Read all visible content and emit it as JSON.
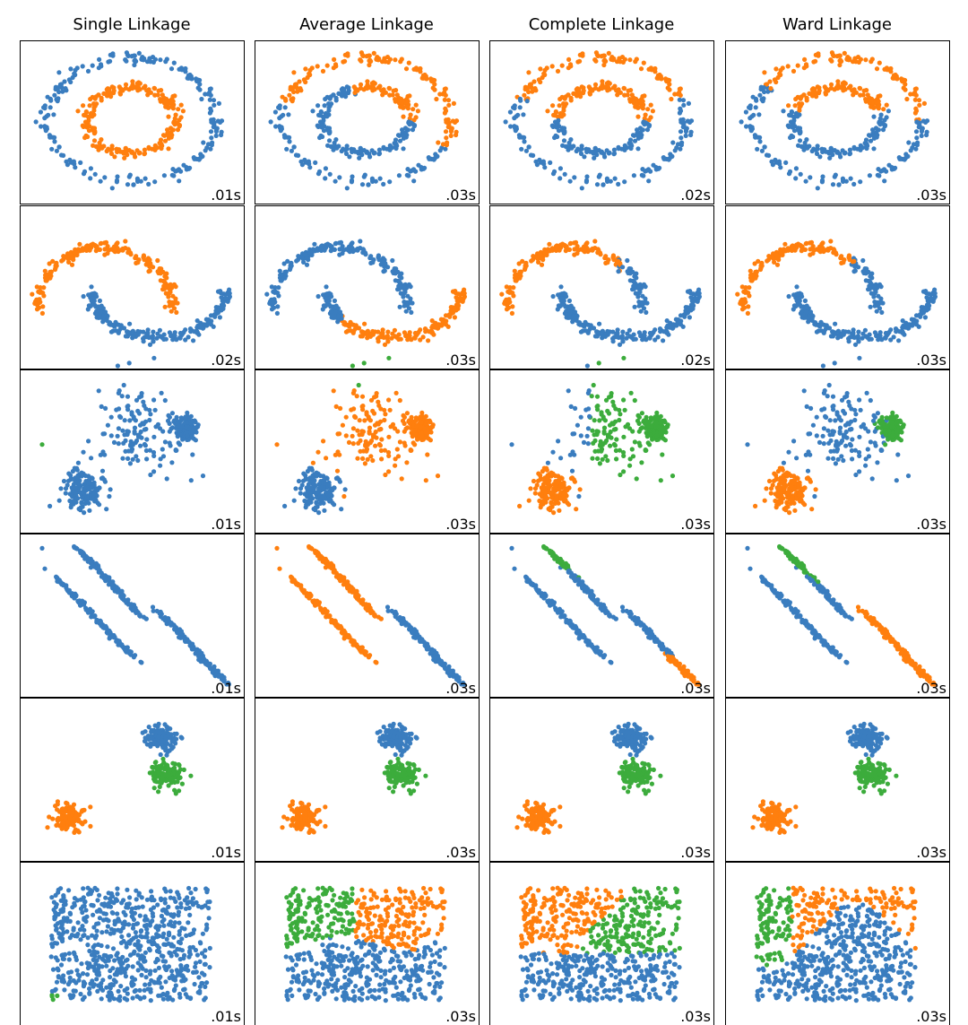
{
  "titles": [
    "Single Linkage",
    "Average Linkage",
    "Complete Linkage",
    "Ward Linkage"
  ],
  "times": [
    [
      ".01s",
      ".03s",
      ".02s",
      ".03s"
    ],
    [
      ".02s",
      ".03s",
      ".02s",
      ".03s"
    ],
    [
      ".01s",
      ".03s",
      ".03s",
      ".03s"
    ],
    [
      ".01s",
      ".03s",
      ".03s",
      ".03s"
    ],
    [
      ".01s",
      ".03s",
      ".03s",
      ".03s"
    ],
    [
      ".01s",
      ".03s",
      ".03s",
      ".03s"
    ]
  ]
}
